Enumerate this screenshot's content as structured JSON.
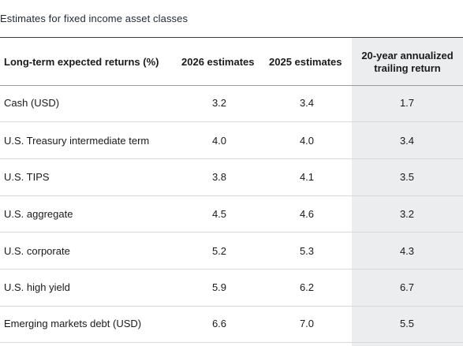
{
  "title": "Estimates for fixed income asset classes",
  "header": {
    "label": "Long-term expected returns (%)",
    "col_2026": "2026 estimates",
    "col_2025": "2025 estimates",
    "col_hist_line1": "20-year annualized",
    "col_hist_line2": "trailing return"
  },
  "rows": [
    {
      "label": "Cash (USD)",
      "e2026": "3.2",
      "e2025": "3.4",
      "hist": "1.7"
    },
    {
      "label": "U.S. Treasury intermediate term",
      "e2026": "4.0",
      "e2025": "4.0",
      "hist": "3.4"
    },
    {
      "label": "U.S. TIPS",
      "e2026": "3.8",
      "e2025": "4.1",
      "hist": "3.5"
    },
    {
      "label": "U.S. aggregate",
      "e2026": "4.5",
      "e2025": "4.6",
      "hist": "3.2"
    },
    {
      "label": "U.S. corporate",
      "e2026": "5.2",
      "e2025": "5.3",
      "hist": "4.3"
    },
    {
      "label": "U.S. high yield",
      "e2026": "5.9",
      "e2025": "6.2",
      "hist": "6.7"
    },
    {
      "label": "Emerging markets debt (USD)",
      "e2026": "6.6",
      "e2025": "7.0",
      "hist": "5.5"
    }
  ],
  "colors": {
    "title": "#1b2a3a",
    "rule": "#3c3c3c",
    "highlight_column": "#ecedef",
    "row_divider": "#d8d8d8"
  }
}
